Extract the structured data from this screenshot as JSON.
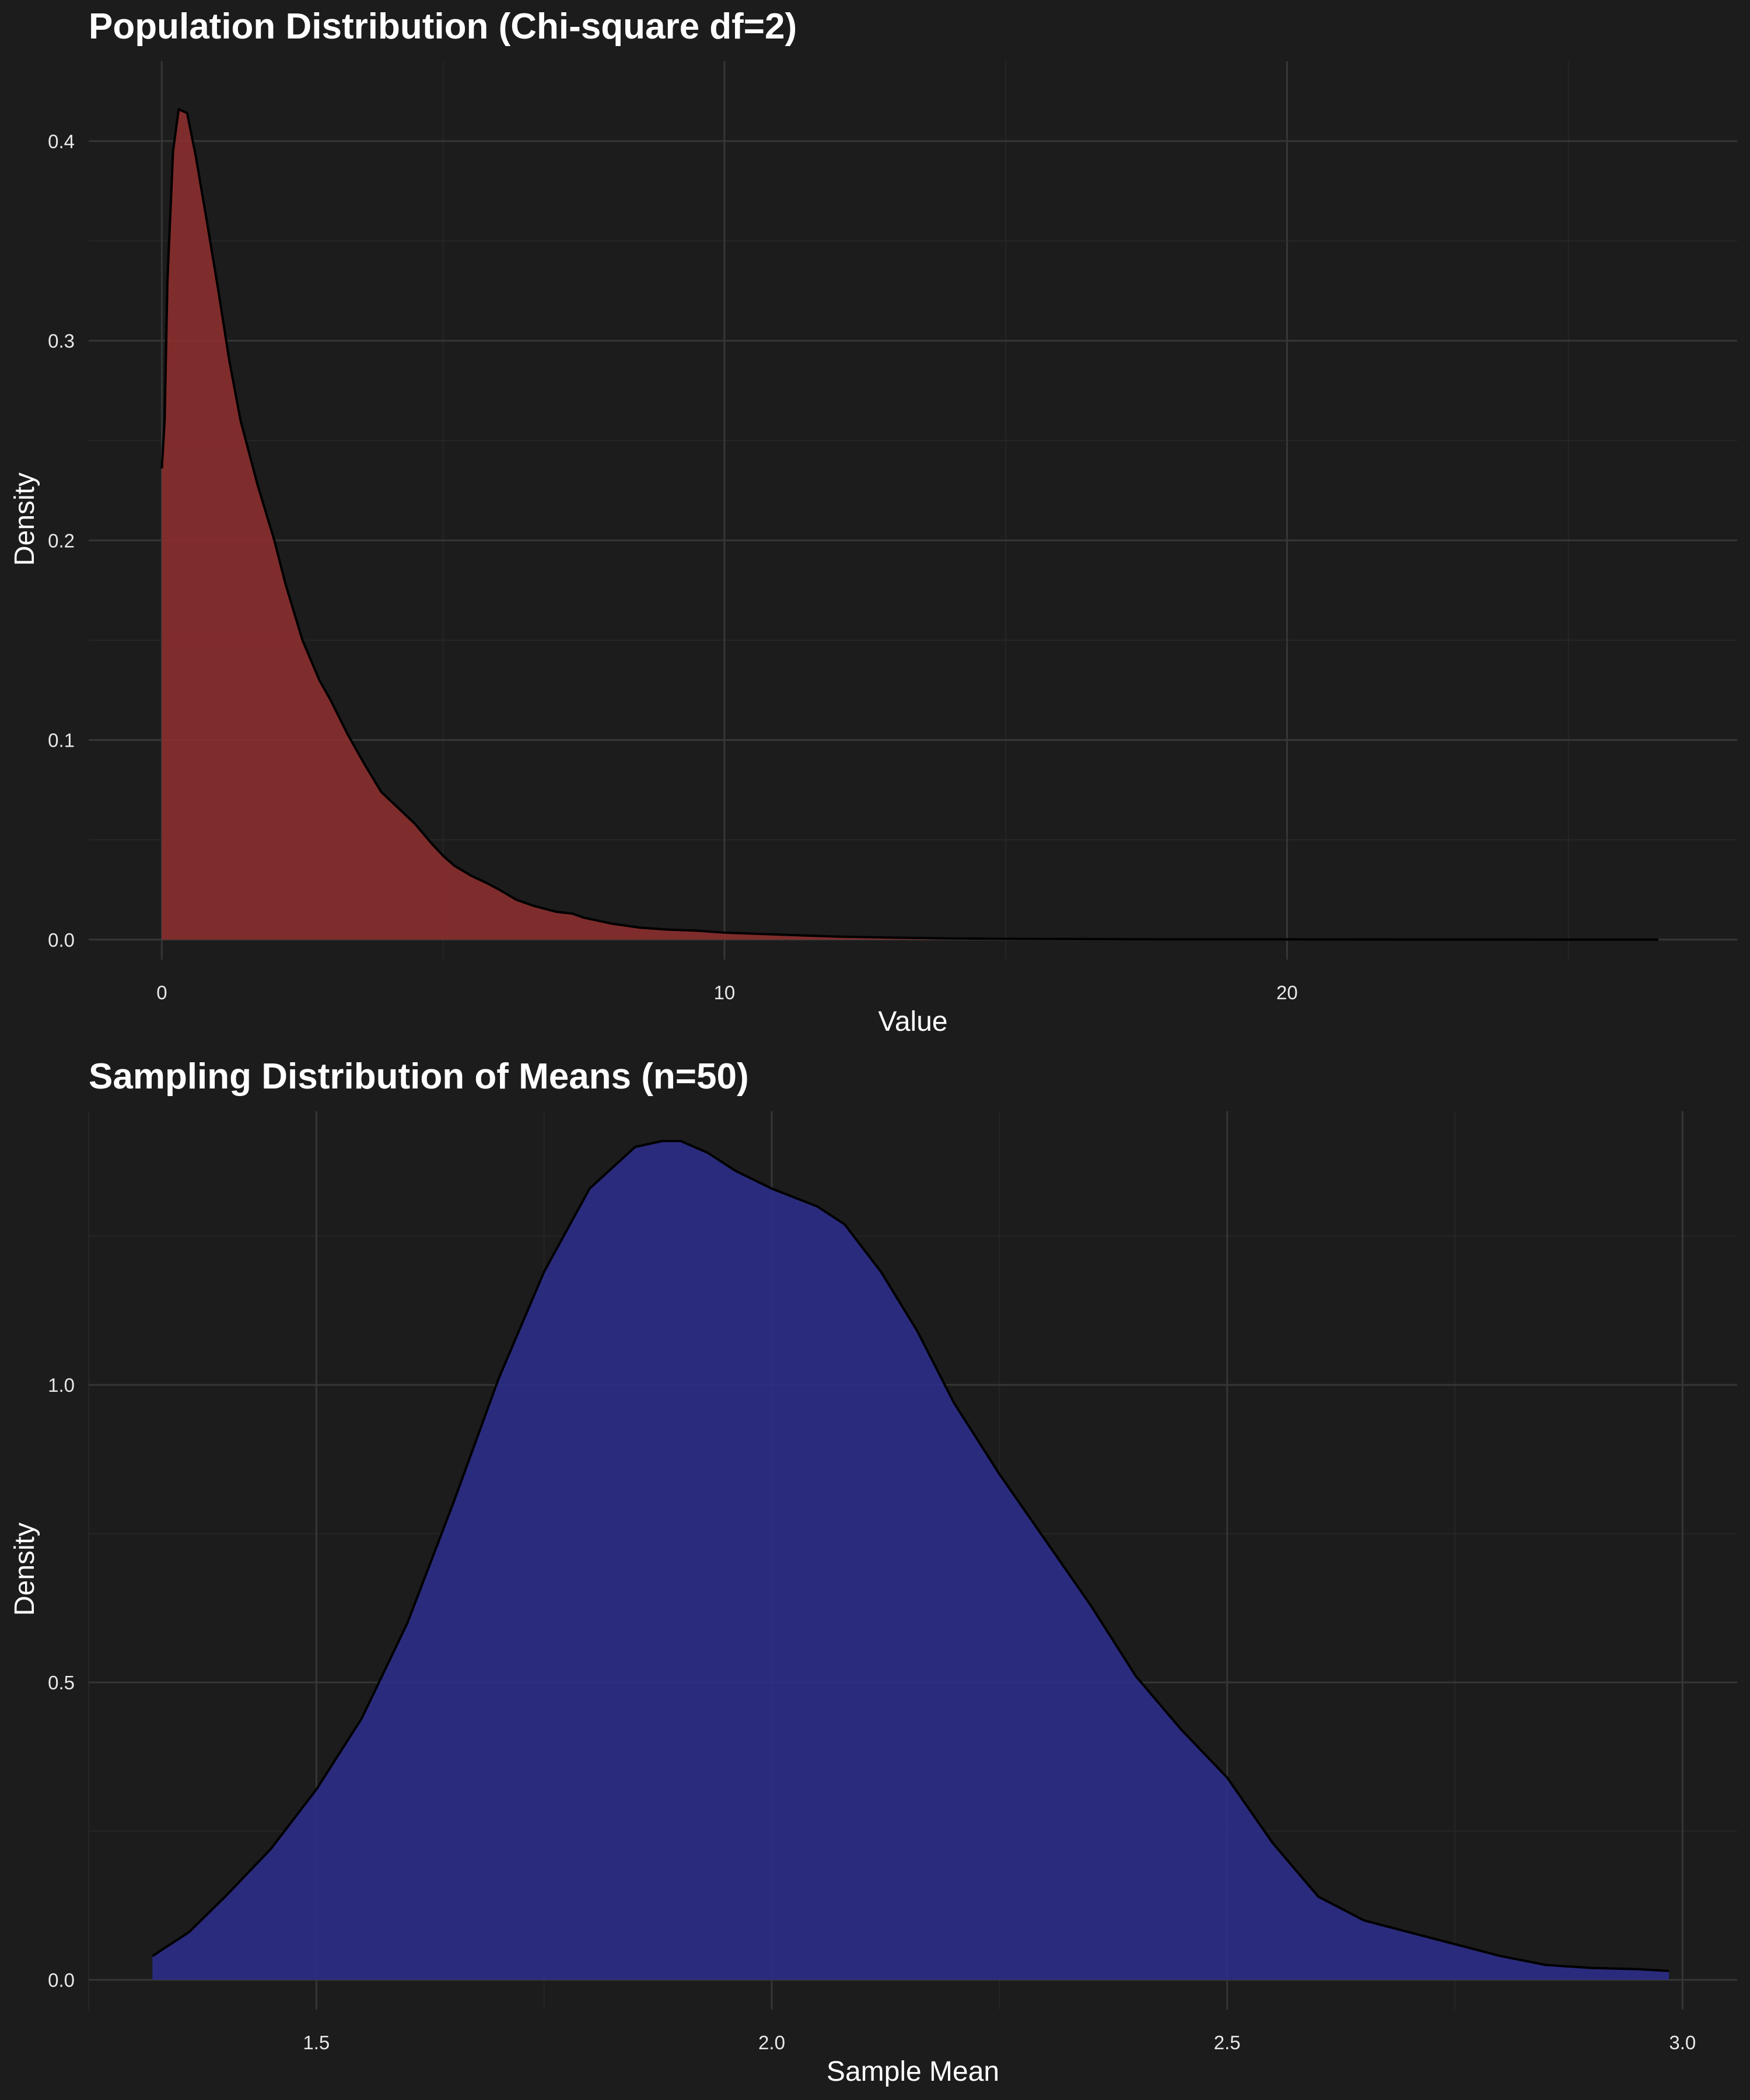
{
  "chart_data": [
    {
      "type": "area",
      "title": "Population Distribution (Chi-square df=2)",
      "xlabel": "Value",
      "ylabel": "Density",
      "xlim": [
        -1.3,
        28
      ],
      "ylim": [
        -0.01,
        0.44
      ],
      "x_ticks": [
        0,
        10,
        20
      ],
      "y_ticks": [
        0.0,
        0.1,
        0.2,
        0.3,
        0.4
      ],
      "y_tick_labels": [
        "0.0",
        "0.1",
        "0.2",
        "0.3",
        "0.4"
      ],
      "x_minor_ticks": [
        5,
        15,
        25
      ],
      "y_minor_ticks": [
        0.05,
        0.15,
        0.25,
        0.35
      ],
      "grid": true,
      "fill_color": "#8b2f2f",
      "line_color": "#000000",
      "x": [
        0.0,
        0.05,
        0.1,
        0.2,
        0.3,
        0.45,
        0.6,
        0.8,
        1.0,
        1.2,
        1.4,
        1.7,
        2.0,
        2.2,
        2.5,
        2.8,
        3.0,
        3.3,
        3.6,
        3.9,
        4.2,
        4.5,
        4.8,
        5.0,
        5.2,
        5.5,
        5.8,
        6.0,
        6.3,
        6.6,
        7.0,
        7.3,
        7.5,
        8.0,
        8.5,
        9.0,
        9.5,
        10.0,
        10.5,
        11.0,
        12.0,
        13.0,
        14.0,
        15.0,
        16.0,
        17.0,
        18.0,
        20.0,
        22.0,
        24.0,
        26.6
      ],
      "y": [
        0.236,
        0.26,
        0.33,
        0.395,
        0.416,
        0.414,
        0.393,
        0.36,
        0.326,
        0.29,
        0.26,
        0.228,
        0.2,
        0.178,
        0.15,
        0.13,
        0.12,
        0.103,
        0.088,
        0.074,
        0.066,
        0.058,
        0.048,
        0.042,
        0.037,
        0.032,
        0.028,
        0.025,
        0.02,
        0.017,
        0.014,
        0.013,
        0.011,
        0.008,
        0.006,
        0.005,
        0.0045,
        0.0035,
        0.003,
        0.0025,
        0.0015,
        0.001,
        0.0006,
        0.0004,
        0.0003,
        0.0002,
        0.0001,
        0.0001,
        5e-05,
        3e-05,
        0.0
      ]
    },
    {
      "type": "area",
      "title": "Sampling Distribution of Means (n=50)",
      "xlabel": "Sample Mean",
      "ylabel": "Density",
      "xlim": [
        1.25,
        3.06
      ],
      "ylim": [
        -0.05,
        1.46
      ],
      "x_ticks": [
        1.5,
        2.0,
        2.5,
        3.0
      ],
      "x_tick_labels": [
        "1.5",
        "2.0",
        "2.5",
        "3.0"
      ],
      "y_ticks": [
        0.0,
        0.5,
        1.0
      ],
      "y_tick_labels": [
        "0.0",
        "0.5",
        "1.0"
      ],
      "x_minor_ticks": [
        1.25,
        1.75,
        2.25,
        2.75
      ],
      "y_minor_ticks": [
        0.25,
        0.75,
        1.25
      ],
      "grid": true,
      "fill_color": "#2e2e88",
      "line_color": "#000000",
      "x": [
        1.32,
        1.36,
        1.4,
        1.45,
        1.5,
        1.55,
        1.6,
        1.65,
        1.7,
        1.75,
        1.8,
        1.85,
        1.88,
        1.9,
        1.93,
        1.96,
        2.0,
        2.05,
        2.08,
        2.12,
        2.16,
        2.2,
        2.25,
        2.3,
        2.35,
        2.4,
        2.45,
        2.5,
        2.55,
        2.6,
        2.65,
        2.7,
        2.75,
        2.8,
        2.85,
        2.9,
        2.95,
        2.985
      ],
      "y": [
        0.04,
        0.08,
        0.14,
        0.22,
        0.32,
        0.44,
        0.6,
        0.8,
        1.01,
        1.19,
        1.33,
        1.4,
        1.41,
        1.41,
        1.39,
        1.36,
        1.33,
        1.3,
        1.27,
        1.19,
        1.09,
        0.97,
        0.85,
        0.74,
        0.63,
        0.51,
        0.42,
        0.34,
        0.23,
        0.14,
        0.1,
        0.08,
        0.06,
        0.04,
        0.025,
        0.02,
        0.018,
        0.015
      ]
    }
  ]
}
